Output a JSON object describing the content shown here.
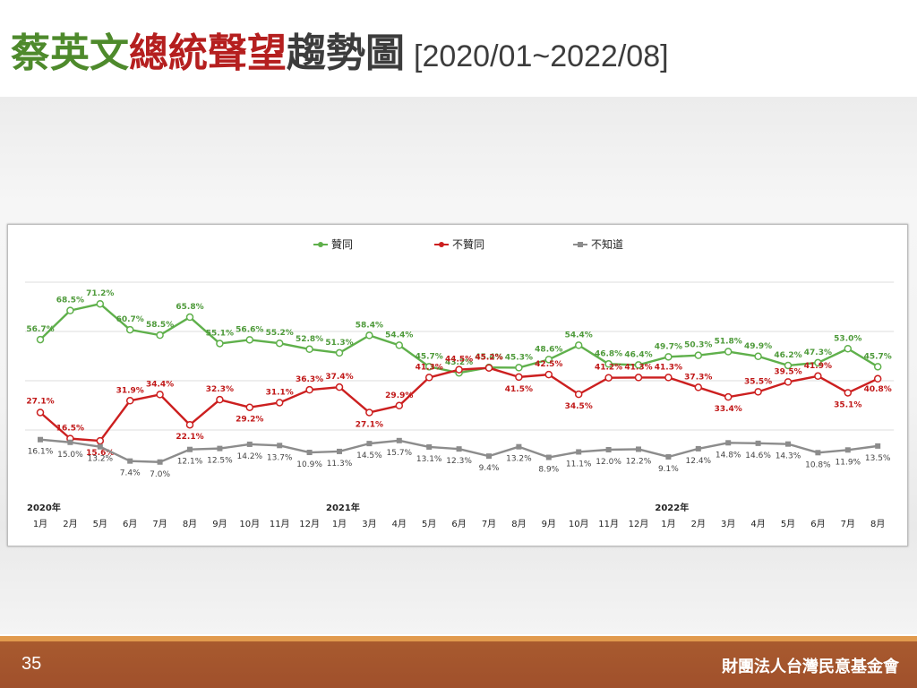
{
  "header": {
    "title_green": "蔡英文",
    "title_red": "總統聲望",
    "title_gray": "趨勢圖",
    "title_range": "[2020/01~2022/08]"
  },
  "footer": {
    "page_number": "35",
    "organization": "財團法人台灣民意基金會"
  },
  "chart_data": {
    "type": "line",
    "legend_placement": "top-center",
    "grid": "horizontal",
    "ylim": [
      0,
      80
    ],
    "x": [
      "1月",
      "2月",
      "5月",
      "6月",
      "7月",
      "8月",
      "9月",
      "10月",
      "11月",
      "12月",
      "1月",
      "3月",
      "4月",
      "5月",
      "6月",
      "7月",
      "8月",
      "9月",
      "10月",
      "11月",
      "12月",
      "1月",
      "2月",
      "3月",
      "4月",
      "5月",
      "6月",
      "7月",
      "8月"
    ],
    "year_labels": [
      {
        "index": 0,
        "label": "2020年"
      },
      {
        "index": 10,
        "label": "2021年"
      },
      {
        "index": 21,
        "label": "2022年"
      }
    ],
    "series": [
      {
        "name": "贊同",
        "color": "#5fb04b",
        "label_color": "#4e9a3a",
        "values": [
          56.7,
          68.5,
          71.2,
          60.7,
          58.5,
          65.8,
          55.1,
          56.6,
          55.2,
          52.8,
          51.3,
          58.4,
          54.4,
          45.7,
          43.2,
          45.4,
          45.3,
          48.6,
          54.4,
          46.8,
          46.4,
          49.7,
          50.3,
          51.8,
          49.9,
          46.2,
          47.3,
          53.0,
          45.7
        ]
      },
      {
        "name": "不贊同",
        "color": "#cc1f1f",
        "label_color": "#c01818",
        "values": [
          27.1,
          16.5,
          15.6,
          31.9,
          34.4,
          22.1,
          32.3,
          29.2,
          31.1,
          36.3,
          37.4,
          27.1,
          29.9,
          41.3,
          44.5,
          45.2,
          41.5,
          42.5,
          34.5,
          41.2,
          41.3,
          41.3,
          37.3,
          33.4,
          35.5,
          39.5,
          41.9,
          35.1,
          40.8
        ]
      },
      {
        "name": "不知道",
        "color": "#8c8c8c",
        "label_color": "#444444",
        "values": [
          16.1,
          15.0,
          13.2,
          7.4,
          7.0,
          12.1,
          12.5,
          14.2,
          13.7,
          10.9,
          11.3,
          14.5,
          15.7,
          13.1,
          12.3,
          9.4,
          13.2,
          8.9,
          11.1,
          12.0,
          12.2,
          9.1,
          12.4,
          14.8,
          14.6,
          14.3,
          10.8,
          11.9,
          13.5
        ]
      }
    ]
  }
}
